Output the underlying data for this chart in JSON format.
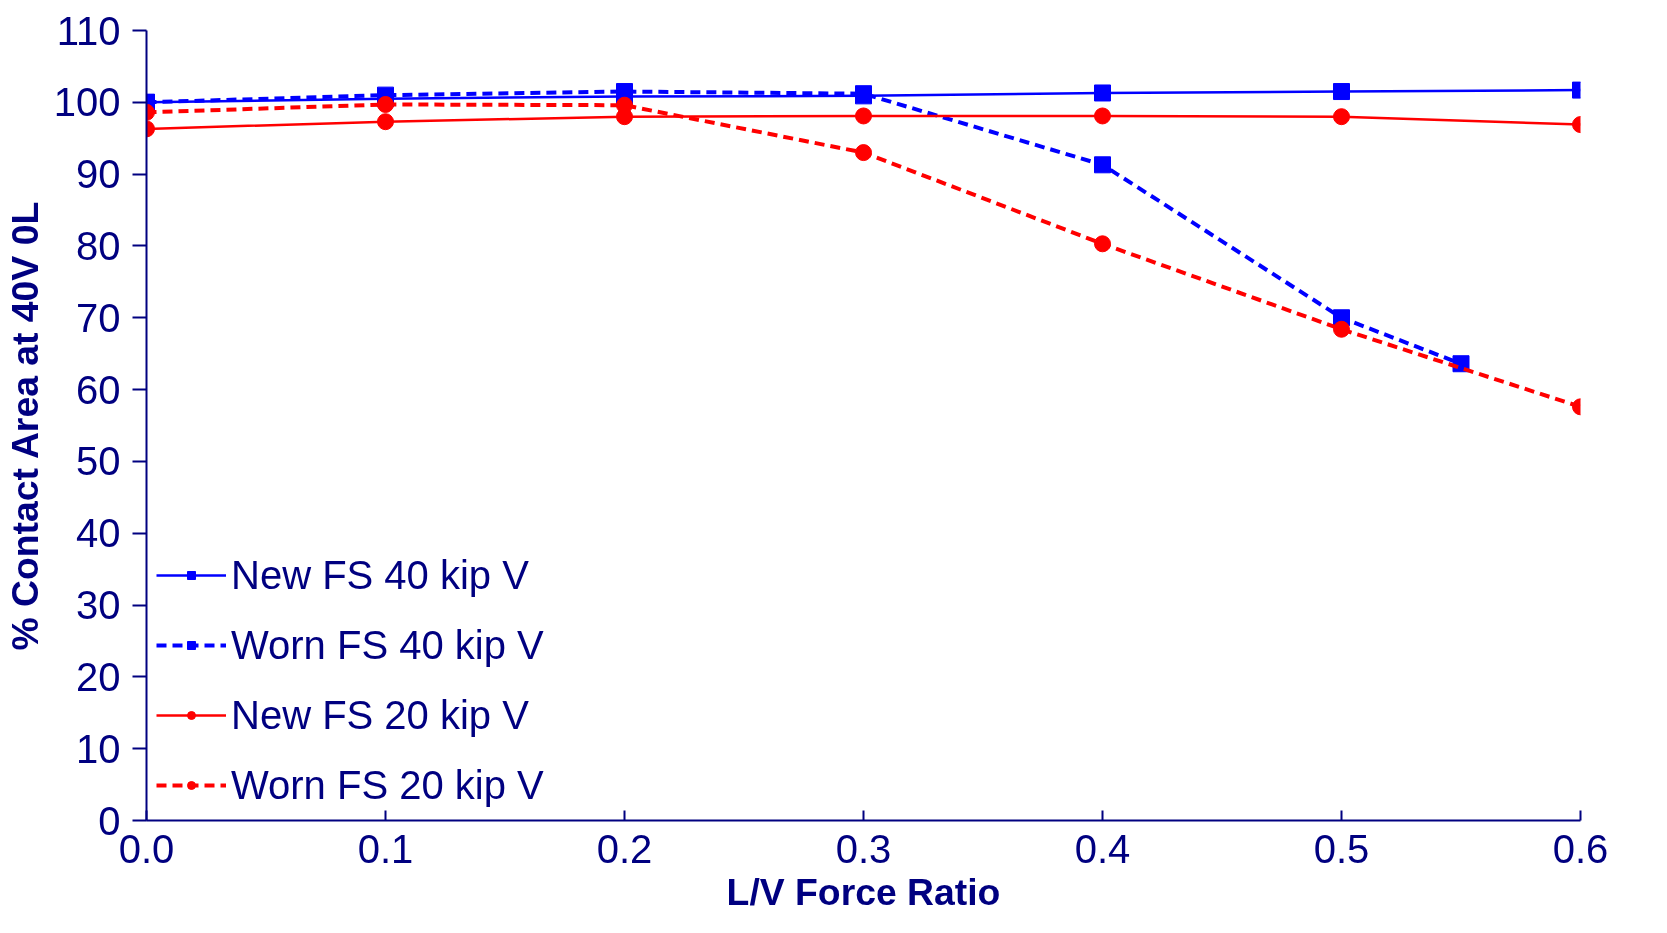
{
  "chart_data": {
    "type": "line",
    "xlabel": "L/V Force Ratio",
    "ylabel": "% Contact Area at 40V 0L",
    "xlim": [
      0,
      0.6
    ],
    "xticks": [
      {
        "value": 0,
        "label": "0.0"
      },
      0.1,
      0.2,
      0.3,
      0.4,
      0.5,
      0.6
    ],
    "ylim": [
      0,
      110
    ],
    "yticks": [
      0,
      10,
      20,
      30,
      40,
      50,
      60,
      70,
      80,
      90,
      100,
      110
    ],
    "grid": false,
    "legend": "bottom left",
    "series": [
      {
        "name": "New FS 40 kip V",
        "color": "#0000ff",
        "marker": "square",
        "line_style": "solid",
        "x": [
          0,
          0.1,
          0.2,
          0.3,
          0.4,
          0.5,
          0.6
        ],
        "values": [
          100,
          100.5,
          100.8,
          100.9,
          101.3,
          101.5,
          101.7
        ]
      },
      {
        "name": "Worn FS 40 kip V",
        "color": "#0000ff",
        "marker": "square",
        "line_style": "dashed",
        "x": [
          0,
          0.1,
          0.2,
          0.3,
          0.4,
          0.5,
          0.55
        ],
        "values": [
          100,
          101,
          101.5,
          101.2,
          91.3,
          70,
          63.6
        ]
      },
      {
        "name": "New FS 20 kip V",
        "color": "#ff0000",
        "marker": "circle",
        "line_style": "solid",
        "x": [
          0,
          0.1,
          0.2,
          0.3,
          0.4,
          0.5,
          0.6
        ],
        "values": [
          96.3,
          97.3,
          98,
          98.1,
          98.1,
          98,
          96.9
        ]
      },
      {
        "name": "Worn FS 20 kip V",
        "color": "#ff0000",
        "marker": "circle",
        "line_style": "dashed",
        "x": [
          0,
          0.1,
          0.2,
          0.3,
          0.4,
          0.5,
          0.6
        ],
        "values": [
          98.6,
          99.7,
          99.6,
          93,
          80.3,
          68.4,
          57.6
        ]
      }
    ]
  }
}
